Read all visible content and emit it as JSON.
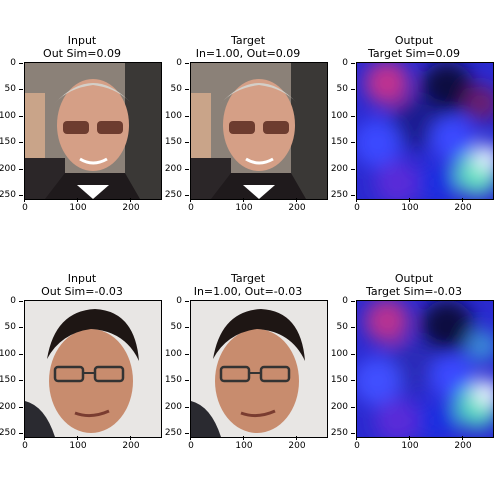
{
  "rows": [
    {
      "panels": [
        {
          "title": "Input",
          "subtitle": "Out Sim=0.09",
          "kind": "face1"
        },
        {
          "title": "Target",
          "subtitle": "In=1.00, Out=0.09",
          "kind": "face1"
        },
        {
          "title": "Output",
          "subtitle": "Target Sim=0.09",
          "kind": "output1"
        }
      ]
    },
    {
      "panels": [
        {
          "title": "Input",
          "subtitle": "Out Sim=-0.03",
          "kind": "face2"
        },
        {
          "title": "Target",
          "subtitle": "In=1.00, Out=-0.03",
          "kind": "face2"
        },
        {
          "title": "Output",
          "subtitle": "Target Sim=-0.03",
          "kind": "output2"
        }
      ]
    }
  ],
  "axis": {
    "yticks": [
      "0",
      "50",
      "100",
      "150",
      "200",
      "250"
    ],
    "xticks": [
      "0",
      "100",
      "200"
    ]
  }
}
